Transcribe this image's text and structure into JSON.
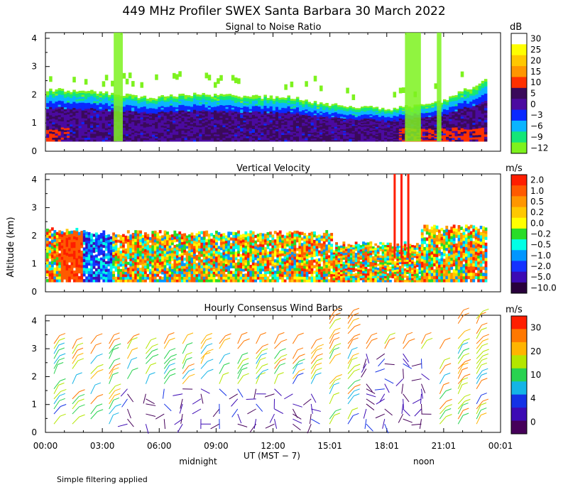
{
  "figure": {
    "title": "449 MHz Profiler SWEX Santa Barbara 30 March 2022",
    "ylabel": "Altitude (km)",
    "xlabel": "UT  (MST − 7)",
    "x_ticks": [
      "00:00",
      "03:00",
      "06:00",
      "09:00",
      "12:00",
      "15:01",
      "18:01",
      "21:01",
      "00:01"
    ],
    "local_labels": [
      "midnight",
      "noon"
    ],
    "footnote": "Simple filtering applied"
  },
  "chart_data": [
    {
      "type": "heatmap",
      "title": "Signal to Noise Ratio",
      "xlabel": "UT  (MST − 7)",
      "ylabel": "Altitude (km)",
      "x_range": [
        "00:00",
        "00:01"
      ],
      "y_range": [
        0,
        4
      ],
      "y_ticks": [
        "0",
        "1",
        "2",
        "3",
        "4"
      ],
      "colorbar": {
        "unit": "dB",
        "labels": [
          "30",
          "25",
          "20",
          "15",
          "10",
          "5",
          "0",
          "−3",
          "−6",
          "−9",
          "−12"
        ],
        "colors": [
          "#ffffff",
          "#ffff00",
          "#ffc800",
          "#ff9600",
          "#ff3000",
          "#3a0a5a",
          "#4b0aa0",
          "#0a28ff",
          "#0ab4ff",
          "#14e678",
          "#7df21e"
        ]
      },
      "description_values": {
        "top_of_signal_km": [
          2.2,
          2.1,
          1.9,
          2.0,
          1.95,
          1.9,
          1.6,
          1.5,
          1.7,
          2.5
        ],
        "min_height_km": 0.35
      }
    },
    {
      "type": "heatmap",
      "title": "Vertical Velocity",
      "xlabel": "UT  (MST − 7)",
      "ylabel": "Altitude (km)",
      "x_range": [
        "00:00",
        "00:01"
      ],
      "y_range": [
        0,
        4
      ],
      "y_ticks": [
        "0",
        "1",
        "2",
        "3",
        "4"
      ],
      "colorbar": {
        "unit": "m/s",
        "labels": [
          "2.0",
          "1.0",
          "0.5",
          "0.2",
          "0.0",
          "−0.2",
          "−0.5",
          "−1.0",
          "−2.0",
          "−5.0",
          "−10.0"
        ],
        "colors": [
          "#ff1e00",
          "#ff5a00",
          "#ff9600",
          "#ffc800",
          "#ffff00",
          "#28dc28",
          "#00ffe6",
          "#0096ff",
          "#1432ff",
          "#3c0ab4",
          "#28003c"
        ]
      }
    },
    {
      "type": "scatter",
      "title": "Hourly Consensus Wind Barbs",
      "xlabel": "UT  (MST − 7)",
      "ylabel": "Altitude (km)",
      "x_range": [
        "00:00",
        "00:01"
      ],
      "y_range": [
        0,
        4
      ],
      "y_ticks": [
        "0",
        "1",
        "2",
        "3",
        "4"
      ],
      "colorbar": {
        "unit": "m/s",
        "labels": [
          "30",
          "20",
          "10",
          "4",
          "0"
        ],
        "colors": [
          "#ff1e00",
          "#ff7800",
          "#ffb400",
          "#b4e600",
          "#28d250",
          "#14b4e6",
          "#1432e6",
          "#3c0ab4",
          "#46005a"
        ]
      }
    }
  ]
}
